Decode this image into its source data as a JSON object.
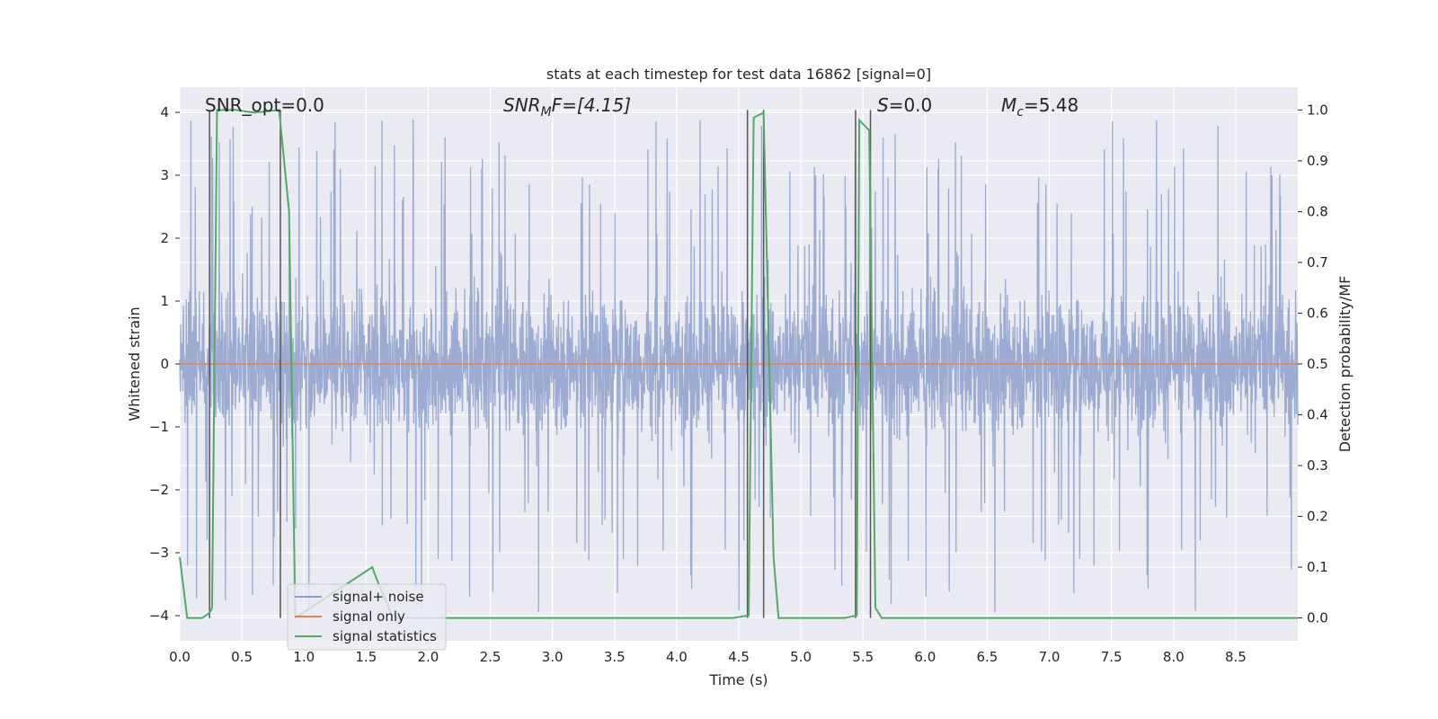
{
  "chart_data": {
    "type": "line",
    "title": "stats at each timestep for test data 16862 [signal=0]",
    "xlabel": "Time (s)",
    "ylabel": "Whitened strain",
    "ylabel_right": "Detection probability/MF",
    "xlim": [
      0.0,
      9.0
    ],
    "ylim": [
      -4.4,
      4.4
    ],
    "ylim_right": [
      -0.045,
      1.045
    ],
    "x_ticks": [
      "0.0",
      "0.5",
      "1.0",
      "1.5",
      "2.0",
      "2.5",
      "3.0",
      "3.5",
      "4.0",
      "4.5",
      "5.0",
      "5.5",
      "6.0",
      "6.5",
      "7.0",
      "7.5",
      "8.0",
      "8.5"
    ],
    "y_ticks": [
      "4",
      "3",
      "2",
      "1",
      "0",
      "−1",
      "−2",
      "−3",
      "−4"
    ],
    "y_ticks_right": [
      "1.0",
      "0.9",
      "0.8",
      "0.7",
      "0.6",
      "0.5",
      "0.4",
      "0.3",
      "0.2",
      "0.1",
      "0.0"
    ],
    "annotations": {
      "snr_opt": "SNR_opt=0.0",
      "snr_mf_prefix": "SNR",
      "snr_mf_sub": "M",
      "snr_mf_suffix": "F=[4.15]",
      "s_var": "S",
      "s_value": "=0.0",
      "mc_var": "M",
      "mc_sub": "c",
      "mc_value": "=5.48"
    },
    "legend_position": "lower-left",
    "grid": true,
    "series": [
      {
        "name": "signal+ noise",
        "color": "#8da0cb",
        "description_of_shape": "dense noise, amplitude mostly within about ±1.6 with spikes up to about ±3.9",
        "envelope": {
          "core_amplitude": 1.6,
          "max_amplitude": 3.95
        }
      },
      {
        "name": "signal only",
        "color": "#dd8452",
        "x": [
          0.0,
          9.0
        ],
        "y": [
          0.0,
          0.0
        ]
      },
      {
        "name": "signal statistics",
        "color": "#55a868",
        "axis": "right",
        "x": [
          0.0,
          0.06,
          0.18,
          0.24,
          0.26,
          0.3,
          0.45,
          0.6,
          0.8,
          0.88,
          0.93,
          1.55,
          1.58,
          1.7,
          1.75,
          2.2,
          2.5,
          4.45,
          4.58,
          4.62,
          4.7,
          4.78,
          4.82,
          5.35,
          5.45,
          5.47,
          5.55,
          5.6,
          5.65,
          6.0,
          9.0
        ],
        "y": [
          0.12,
          0.0,
          0.0,
          0.01,
          0.02,
          1.0,
          1.0,
          0.995,
          1.0,
          0.8,
          0.0,
          0.1,
          0.08,
          0.01,
          0.0,
          0.0,
          0.0,
          0.0,
          0.005,
          0.985,
          0.995,
          0.12,
          0.0,
          0.0,
          0.005,
          0.98,
          0.96,
          0.02,
          0.0,
          0.0,
          0.0
        ]
      }
    ],
    "vertical_lines_x": [
      0.24,
      0.81,
      4.57,
      4.7,
      5.44,
      5.56
    ]
  },
  "colors": {
    "axes_bg": "#eaeaf2",
    "grid": "#ffffff",
    "noise": "#8da0cb",
    "signal": "#dd8452",
    "stats": "#55a868",
    "vline": "#555555"
  }
}
